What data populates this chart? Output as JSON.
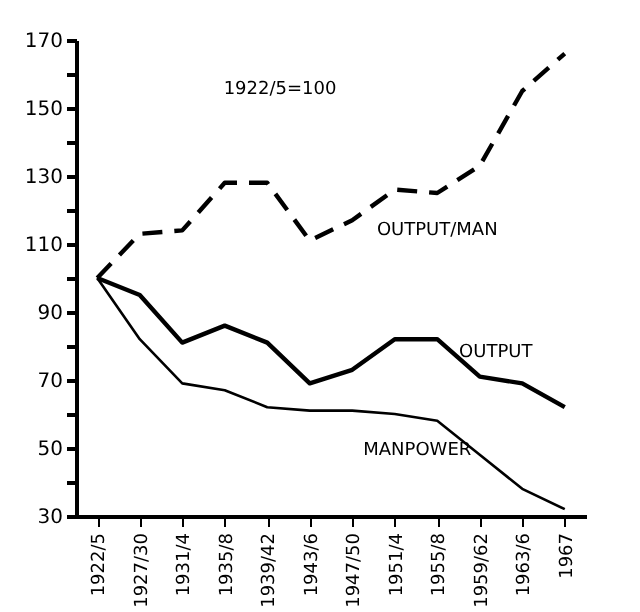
{
  "chart_data": {
    "type": "line",
    "categories": [
      "1922/5",
      "1927/30",
      "1931/4",
      "1935/8",
      "1939/42",
      "1943/6",
      "1947/50",
      "1951/4",
      "1955/8",
      "1959/62",
      "1963/6",
      "1967"
    ],
    "series": [
      {
        "name": "OUTPUT/MAN",
        "color": "#000000",
        "line_style": "dashed",
        "values": [
          100,
          113,
          114,
          128,
          128,
          111,
          117,
          126,
          125,
          133,
          155,
          166
        ]
      },
      {
        "name": "OUTPUT",
        "color": "#000000",
        "line_style": "solid",
        "values": [
          100,
          95,
          81,
          86,
          81,
          69,
          73,
          82,
          82,
          71,
          69,
          62
        ]
      },
      {
        "name": "MANPOWER",
        "color": "#000000",
        "line_style": "solid",
        "values": [
          100,
          82,
          69,
          67,
          62,
          61,
          61,
          60,
          58,
          48,
          38,
          32
        ]
      }
    ],
    "ylim": [
      30,
      170
    ],
    "yticks": [
      30,
      {
        "value": 40,
        "label": null
      },
      50,
      {
        "value": 60,
        "label": null
      },
      70,
      {
        "value": 80,
        "label": null
      },
      90,
      {
        "value": 100,
        "label": null
      },
      110,
      {
        "value": 120,
        "label": null
      },
      130,
      {
        "value": 140,
        "label": null
      },
      150,
      {
        "value": 160,
        "label": null
      },
      170
    ],
    "annotations": [
      "1922/5=100"
    ],
    "grid": false,
    "legend": false,
    "marker": "none"
  }
}
